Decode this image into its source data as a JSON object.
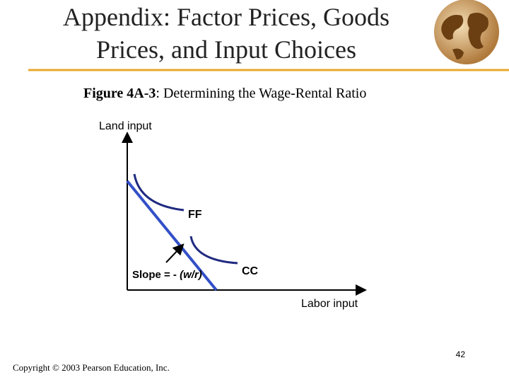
{
  "header": {
    "title": [
      "Appendix: Factor Prices, Goods",
      "Prices, and Input Choices"
    ]
  },
  "figure": {
    "number": "Figure 4A-3",
    "caption": ": Determining the Wage-Rental Ratio",
    "y_axis_label": "Land input",
    "x_axis_label": "Labor input",
    "curves": [
      {
        "label": "FF"
      },
      {
        "label": "CC"
      }
    ],
    "slope_label": {
      "text": "Slope = - ",
      "emphasis": "(w/r)"
    }
  },
  "footer": {
    "page_number": "42",
    "copyright": "Copyright © 2003 Pearson Education, Inc."
  }
}
